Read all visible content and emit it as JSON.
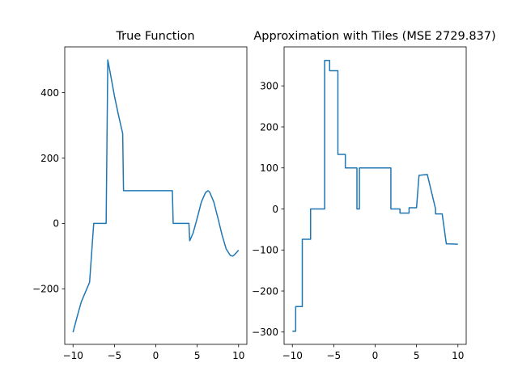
{
  "chart_data": [
    {
      "type": "line",
      "title": "True Function",
      "xlabel": "",
      "ylabel": "",
      "xlim": [
        -11,
        11
      ],
      "ylim": [
        -370,
        540
      ],
      "x_ticks": [
        -10,
        -5,
        0,
        5,
        10
      ],
      "x_tick_labels": [
        "−10",
        "−5",
        "0",
        "5",
        "10"
      ],
      "y_ticks": [
        -200,
        0,
        200,
        400
      ],
      "y_tick_labels": [
        "−200",
        "0",
        "200",
        "400"
      ],
      "color": "#1f77b4",
      "grid": false,
      "series": [
        {
          "x": [
            -10,
            -9.5,
            -9,
            -8.5,
            -8,
            -7.5,
            -7,
            -6.5,
            -6,
            -5.8,
            -5.5,
            -5,
            -4.5,
            -4,
            -3.9,
            -3.5,
            -3,
            -2.5,
            -2,
            -1.5,
            -1,
            -0.5,
            0,
            0.5,
            1,
            1.5,
            2,
            2.1,
            2.5,
            3,
            3.5,
            4,
            4.1,
            4.5,
            5,
            5.5,
            6,
            6.3,
            6.5,
            7,
            7.5,
            8,
            8.5,
            9,
            9.3,
            9.5,
            10
          ],
          "y": [
            -333,
            -285,
            -240,
            -210,
            -180,
            0,
            0,
            0,
            0,
            500,
            460,
            390,
            330,
            275,
            100,
            100,
            100,
            100,
            100,
            100,
            100,
            100,
            100,
            100,
            100,
            100,
            100,
            0,
            0,
            0,
            0,
            0,
            -53,
            -30,
            16,
            65,
            94,
            100,
            96,
            66,
            17,
            -35,
            -78,
            -98,
            -100,
            -96,
            -82
          ]
        }
      ]
    },
    {
      "type": "line",
      "title": "Approximation with Tiles (MSE 2729.837)",
      "xlabel": "",
      "ylabel": "",
      "xlim": [
        -11,
        11
      ],
      "ylim": [
        -330,
        395
      ],
      "x_ticks": [
        -10,
        -5,
        0,
        5,
        10
      ],
      "x_tick_labels": [
        "−10",
        "−5",
        "0",
        "5",
        "10"
      ],
      "y_ticks": [
        -300,
        -200,
        -100,
        0,
        100,
        200,
        300
      ],
      "y_tick_labels": [
        "−300",
        "−200",
        "−100",
        "0",
        "100",
        "200",
        "300"
      ],
      "color": "#1f77b4",
      "grid": false,
      "series": [
        {
          "x": [
            -10,
            -9.6,
            -9.6,
            -8.8,
            -8.8,
            -7.8,
            -7.8,
            -6.9,
            -6.9,
            -6.1,
            -6.1,
            -5.5,
            -5.5,
            -4.5,
            -4.5,
            -3.6,
            -3.6,
            -2.8,
            -2.8,
            -2.2,
            -2.2,
            -1.9,
            -1.9,
            1.9,
            1.9,
            3.0,
            3.0,
            4.1,
            4.1,
            5.0,
            5.0,
            5.3,
            5.3,
            6.3,
            6.3,
            7.3,
            7.3,
            8.1,
            8.1,
            8.6,
            8.6,
            10
          ],
          "y": [
            -298,
            -298,
            -238,
            -238,
            -74,
            -74,
            0,
            0,
            0,
            0,
            362,
            362,
            337,
            337,
            133,
            133,
            100,
            100,
            100,
            100,
            0,
            0,
            100,
            100,
            0,
            0,
            -10,
            -10,
            3,
            3,
            3,
            82,
            82,
            84,
            84,
            0,
            -12,
            -12,
            -12,
            -85,
            -85,
            -86
          ]
        }
      ]
    }
  ]
}
